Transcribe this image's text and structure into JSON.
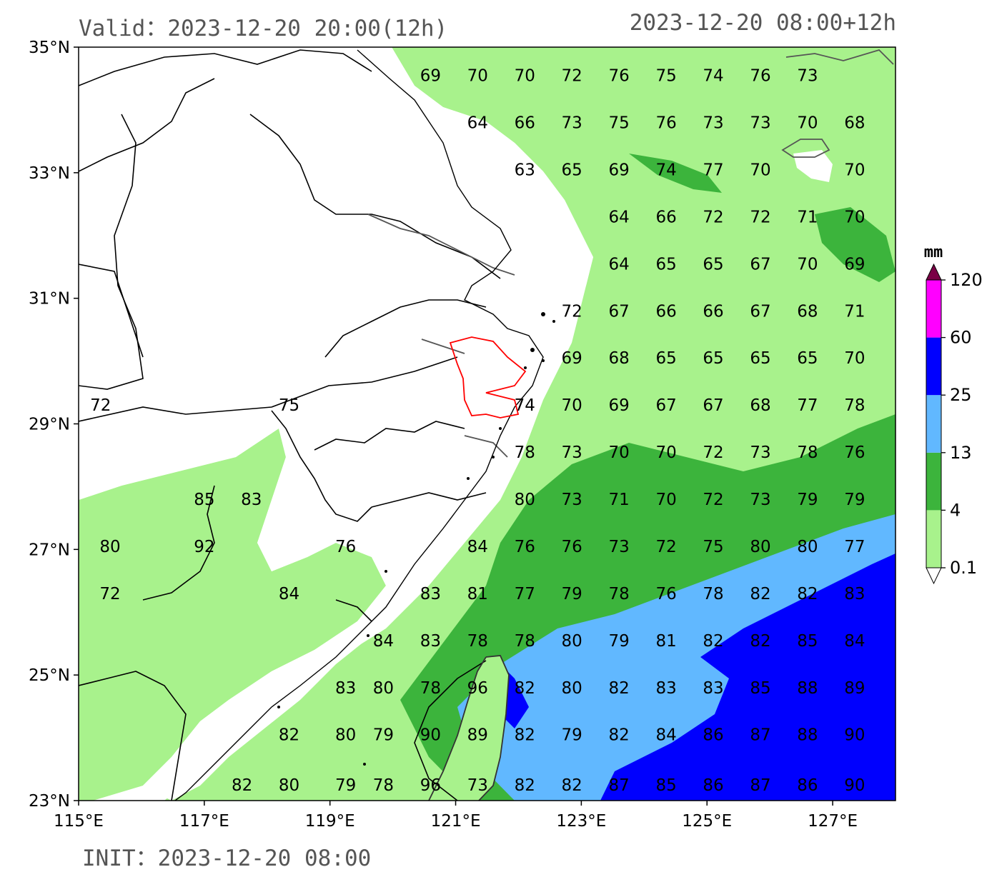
{
  "header": {
    "valid_label": "Valid：2023-12-20 20:00(12h)",
    "run_label": "2023-12-20 08:00+12h",
    "init_label": "INIT：2023-12-20 08:00"
  },
  "axes": {
    "lon_ticks": [
      "115°E",
      "117°E",
      "119°E",
      "121°E",
      "123°E",
      "125°E",
      "127°E"
    ],
    "lat_ticks": [
      "35°N",
      "33°N",
      "31°N",
      "29°N",
      "27°N",
      "25°N",
      "23°N"
    ]
  },
  "colorbar": {
    "unit": "mm",
    "levels": [
      "0.1",
      "4",
      "13",
      "25",
      "60",
      "120"
    ],
    "colors": [
      "#a8f28c",
      "#3cb43c",
      "#61b8ff",
      "#0000fe",
      "#ff00ff",
      "#7a0046"
    ]
  },
  "colors": {
    "border": "#000000",
    "river": "#555555",
    "highlight_region": "#ff0000"
  },
  "values": [
    {
      "lon": 120.6,
      "lat": 34.55,
      "v": "69"
    },
    {
      "lon": 121.35,
      "lat": 34.55,
      "v": "70"
    },
    {
      "lon": 122.1,
      "lat": 34.55,
      "v": "70"
    },
    {
      "lon": 122.85,
      "lat": 34.55,
      "v": "72"
    },
    {
      "lon": 123.6,
      "lat": 34.55,
      "v": "76"
    },
    {
      "lon": 124.35,
      "lat": 34.55,
      "v": "75"
    },
    {
      "lon": 125.1,
      "lat": 34.55,
      "v": "74"
    },
    {
      "lon": 125.85,
      "lat": 34.55,
      "v": "76"
    },
    {
      "lon": 126.6,
      "lat": 34.55,
      "v": "73"
    },
    {
      "lon": 121.35,
      "lat": 33.8,
      "v": "64"
    },
    {
      "lon": 122.1,
      "lat": 33.8,
      "v": "66"
    },
    {
      "lon": 122.85,
      "lat": 33.8,
      "v": "73"
    },
    {
      "lon": 123.6,
      "lat": 33.8,
      "v": "75"
    },
    {
      "lon": 124.35,
      "lat": 33.8,
      "v": "76"
    },
    {
      "lon": 125.1,
      "lat": 33.8,
      "v": "73"
    },
    {
      "lon": 125.85,
      "lat": 33.8,
      "v": "73"
    },
    {
      "lon": 126.6,
      "lat": 33.8,
      "v": "70"
    },
    {
      "lon": 127.35,
      "lat": 33.8,
      "v": "68"
    },
    {
      "lon": 122.1,
      "lat": 33.05,
      "v": "63"
    },
    {
      "lon": 122.85,
      "lat": 33.05,
      "v": "65"
    },
    {
      "lon": 123.6,
      "lat": 33.05,
      "v": "69"
    },
    {
      "lon": 124.35,
      "lat": 33.05,
      "v": "74"
    },
    {
      "lon": 125.1,
      "lat": 33.05,
      "v": "77"
    },
    {
      "lon": 125.85,
      "lat": 33.05,
      "v": "70"
    },
    {
      "lon": 127.35,
      "lat": 33.05,
      "v": "70"
    },
    {
      "lon": 123.6,
      "lat": 32.3,
      "v": "64"
    },
    {
      "lon": 124.35,
      "lat": 32.3,
      "v": "66"
    },
    {
      "lon": 125.1,
      "lat": 32.3,
      "v": "72"
    },
    {
      "lon": 125.85,
      "lat": 32.3,
      "v": "72"
    },
    {
      "lon": 126.6,
      "lat": 32.3,
      "v": "71"
    },
    {
      "lon": 127.35,
      "lat": 32.3,
      "v": "70"
    },
    {
      "lon": 123.6,
      "lat": 31.55,
      "v": "64"
    },
    {
      "lon": 124.35,
      "lat": 31.55,
      "v": "65"
    },
    {
      "lon": 125.1,
      "lat": 31.55,
      "v": "65"
    },
    {
      "lon": 125.85,
      "lat": 31.55,
      "v": "67"
    },
    {
      "lon": 126.6,
      "lat": 31.55,
      "v": "70"
    },
    {
      "lon": 127.35,
      "lat": 31.55,
      "v": "69"
    },
    {
      "lon": 122.85,
      "lat": 30.8,
      "v": "72"
    },
    {
      "lon": 123.6,
      "lat": 30.8,
      "v": "67"
    },
    {
      "lon": 124.35,
      "lat": 30.8,
      "v": "66"
    },
    {
      "lon": 125.1,
      "lat": 30.8,
      "v": "66"
    },
    {
      "lon": 125.85,
      "lat": 30.8,
      "v": "67"
    },
    {
      "lon": 126.6,
      "lat": 30.8,
      "v": "68"
    },
    {
      "lon": 127.35,
      "lat": 30.8,
      "v": "71"
    },
    {
      "lon": 122.85,
      "lat": 30.05,
      "v": "69"
    },
    {
      "lon": 123.6,
      "lat": 30.05,
      "v": "68"
    },
    {
      "lon": 124.35,
      "lat": 30.05,
      "v": "65"
    },
    {
      "lon": 125.1,
      "lat": 30.05,
      "v": "65"
    },
    {
      "lon": 125.85,
      "lat": 30.05,
      "v": "65"
    },
    {
      "lon": 126.6,
      "lat": 30.05,
      "v": "65"
    },
    {
      "lon": 127.35,
      "lat": 30.05,
      "v": "70"
    },
    {
      "lon": 115.35,
      "lat": 29.3,
      "v": "72"
    },
    {
      "lon": 118.35,
      "lat": 29.3,
      "v": "75"
    },
    {
      "lon": 122.1,
      "lat": 29.3,
      "v": "74"
    },
    {
      "lon": 122.85,
      "lat": 29.3,
      "v": "70"
    },
    {
      "lon": 123.6,
      "lat": 29.3,
      "v": "69"
    },
    {
      "lon": 124.35,
      "lat": 29.3,
      "v": "67"
    },
    {
      "lon": 125.1,
      "lat": 29.3,
      "v": "67"
    },
    {
      "lon": 125.85,
      "lat": 29.3,
      "v": "68"
    },
    {
      "lon": 126.6,
      "lat": 29.3,
      "v": "77"
    },
    {
      "lon": 127.35,
      "lat": 29.3,
      "v": "78"
    },
    {
      "lon": 122.1,
      "lat": 28.55,
      "v": "78"
    },
    {
      "lon": 122.85,
      "lat": 28.55,
      "v": "73"
    },
    {
      "lon": 123.6,
      "lat": 28.55,
      "v": "70"
    },
    {
      "lon": 124.35,
      "lat": 28.55,
      "v": "70"
    },
    {
      "lon": 125.1,
      "lat": 28.55,
      "v": "72"
    },
    {
      "lon": 125.85,
      "lat": 28.55,
      "v": "73"
    },
    {
      "lon": 126.6,
      "lat": 28.55,
      "v": "78"
    },
    {
      "lon": 127.35,
      "lat": 28.55,
      "v": "76"
    },
    {
      "lon": 117.0,
      "lat": 27.8,
      "v": "85"
    },
    {
      "lon": 117.75,
      "lat": 27.8,
      "v": "83"
    },
    {
      "lon": 122.1,
      "lat": 27.8,
      "v": "80"
    },
    {
      "lon": 122.85,
      "lat": 27.8,
      "v": "73"
    },
    {
      "lon": 123.6,
      "lat": 27.8,
      "v": "71"
    },
    {
      "lon": 124.35,
      "lat": 27.8,
      "v": "70"
    },
    {
      "lon": 125.1,
      "lat": 27.8,
      "v": "72"
    },
    {
      "lon": 125.85,
      "lat": 27.8,
      "v": "73"
    },
    {
      "lon": 126.6,
      "lat": 27.8,
      "v": "79"
    },
    {
      "lon": 127.35,
      "lat": 27.8,
      "v": "79"
    },
    {
      "lon": 115.5,
      "lat": 27.05,
      "v": "80"
    },
    {
      "lon": 117.0,
      "lat": 27.05,
      "v": "92"
    },
    {
      "lon": 119.25,
      "lat": 27.05,
      "v": "76"
    },
    {
      "lon": 121.35,
      "lat": 27.05,
      "v": "84"
    },
    {
      "lon": 122.1,
      "lat": 27.05,
      "v": "76"
    },
    {
      "lon": 122.85,
      "lat": 27.05,
      "v": "76"
    },
    {
      "lon": 123.6,
      "lat": 27.05,
      "v": "73"
    },
    {
      "lon": 124.35,
      "lat": 27.05,
      "v": "72"
    },
    {
      "lon": 125.1,
      "lat": 27.05,
      "v": "75"
    },
    {
      "lon": 125.85,
      "lat": 27.05,
      "v": "80"
    },
    {
      "lon": 126.6,
      "lat": 27.05,
      "v": "80"
    },
    {
      "lon": 127.35,
      "lat": 27.05,
      "v": "77"
    },
    {
      "lon": 115.5,
      "lat": 26.3,
      "v": "72"
    },
    {
      "lon": 118.35,
      "lat": 26.3,
      "v": "84"
    },
    {
      "lon": 120.6,
      "lat": 26.3,
      "v": "83"
    },
    {
      "lon": 121.35,
      "lat": 26.3,
      "v": "81"
    },
    {
      "lon": 122.1,
      "lat": 26.3,
      "v": "77"
    },
    {
      "lon": 122.85,
      "lat": 26.3,
      "v": "79"
    },
    {
      "lon": 123.6,
      "lat": 26.3,
      "v": "78"
    },
    {
      "lon": 124.35,
      "lat": 26.3,
      "v": "76"
    },
    {
      "lon": 125.1,
      "lat": 26.3,
      "v": "78"
    },
    {
      "lon": 125.85,
      "lat": 26.3,
      "v": "82"
    },
    {
      "lon": 126.6,
      "lat": 26.3,
      "v": "82"
    },
    {
      "lon": 127.35,
      "lat": 26.3,
      "v": "83"
    },
    {
      "lon": 119.85,
      "lat": 25.55,
      "v": "84"
    },
    {
      "lon": 120.6,
      "lat": 25.55,
      "v": "83"
    },
    {
      "lon": 121.35,
      "lat": 25.55,
      "v": "78"
    },
    {
      "lon": 122.1,
      "lat": 25.55,
      "v": "78"
    },
    {
      "lon": 122.85,
      "lat": 25.55,
      "v": "80"
    },
    {
      "lon": 123.6,
      "lat": 25.55,
      "v": "79"
    },
    {
      "lon": 124.35,
      "lat": 25.55,
      "v": "81"
    },
    {
      "lon": 125.1,
      "lat": 25.55,
      "v": "82"
    },
    {
      "lon": 125.85,
      "lat": 25.55,
      "v": "82"
    },
    {
      "lon": 126.6,
      "lat": 25.55,
      "v": "85"
    },
    {
      "lon": 127.35,
      "lat": 25.55,
      "v": "84"
    },
    {
      "lon": 119.25,
      "lat": 24.8,
      "v": "83"
    },
    {
      "lon": 119.85,
      "lat": 24.8,
      "v": "80"
    },
    {
      "lon": 120.6,
      "lat": 24.8,
      "v": "78"
    },
    {
      "lon": 121.35,
      "lat": 24.8,
      "v": "96"
    },
    {
      "lon": 122.1,
      "lat": 24.8,
      "v": "82"
    },
    {
      "lon": 122.85,
      "lat": 24.8,
      "v": "80"
    },
    {
      "lon": 123.6,
      "lat": 24.8,
      "v": "82"
    },
    {
      "lon": 124.35,
      "lat": 24.8,
      "v": "83"
    },
    {
      "lon": 125.1,
      "lat": 24.8,
      "v": "83"
    },
    {
      "lon": 125.85,
      "lat": 24.8,
      "v": "85"
    },
    {
      "lon": 126.6,
      "lat": 24.8,
      "v": "88"
    },
    {
      "lon": 127.35,
      "lat": 24.8,
      "v": "89"
    },
    {
      "lon": 118.35,
      "lat": 24.05,
      "v": "82"
    },
    {
      "lon": 119.25,
      "lat": 24.05,
      "v": "80"
    },
    {
      "lon": 119.85,
      "lat": 24.05,
      "v": "79"
    },
    {
      "lon": 120.6,
      "lat": 24.05,
      "v": "90"
    },
    {
      "lon": 121.35,
      "lat": 24.05,
      "v": "89"
    },
    {
      "lon": 122.1,
      "lat": 24.05,
      "v": "82"
    },
    {
      "lon": 122.85,
      "lat": 24.05,
      "v": "79"
    },
    {
      "lon": 123.6,
      "lat": 24.05,
      "v": "82"
    },
    {
      "lon": 124.35,
      "lat": 24.05,
      "v": "84"
    },
    {
      "lon": 125.1,
      "lat": 24.05,
      "v": "86"
    },
    {
      "lon": 125.85,
      "lat": 24.05,
      "v": "87"
    },
    {
      "lon": 126.6,
      "lat": 24.05,
      "v": "88"
    },
    {
      "lon": 127.35,
      "lat": 24.05,
      "v": "90"
    },
    {
      "lon": 117.6,
      "lat": 23.25,
      "v": "82"
    },
    {
      "lon": 118.35,
      "lat": 23.25,
      "v": "80"
    },
    {
      "lon": 119.25,
      "lat": 23.25,
      "v": "79"
    },
    {
      "lon": 119.85,
      "lat": 23.25,
      "v": "78"
    },
    {
      "lon": 120.6,
      "lat": 23.25,
      "v": "96"
    },
    {
      "lon": 121.35,
      "lat": 23.25,
      "v": "73"
    },
    {
      "lon": 122.1,
      "lat": 23.25,
      "v": "82"
    },
    {
      "lon": 122.85,
      "lat": 23.25,
      "v": "82"
    },
    {
      "lon": 123.6,
      "lat": 23.25,
      "v": "87"
    },
    {
      "lon": 124.35,
      "lat": 23.25,
      "v": "85"
    },
    {
      "lon": 125.1,
      "lat": 23.25,
      "v": "86"
    },
    {
      "lon": 125.85,
      "lat": 23.25,
      "v": "87"
    },
    {
      "lon": 126.6,
      "lat": 23.25,
      "v": "86"
    },
    {
      "lon": 127.35,
      "lat": 23.25,
      "v": "90"
    }
  ]
}
